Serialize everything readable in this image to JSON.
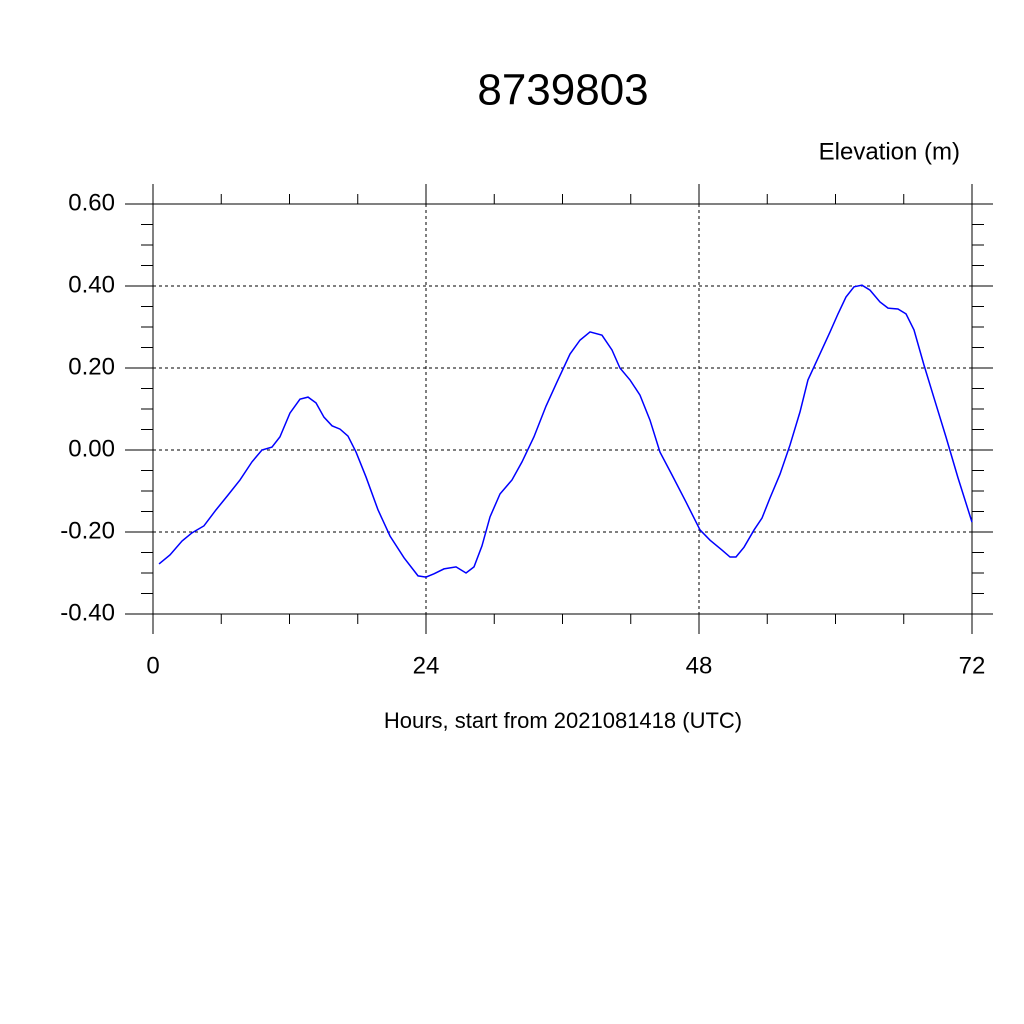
{
  "chart_data": {
    "type": "line",
    "title": "8739803",
    "ylabel": "Elevation (m)",
    "xlabel": "Hours, start from 2021081418 (UTC)",
    "color": "#0000ff",
    "grid": true,
    "xlim": [
      0,
      72
    ],
    "ylim": [
      -0.4,
      0.6
    ],
    "xticks": [
      0,
      24,
      48,
      72
    ],
    "yticks": [
      {
        "value": -0.4,
        "label": "-0.40"
      },
      {
        "value": -0.2,
        "label": "-0.20"
      },
      {
        "value": 0,
        "label": "0.00"
      },
      {
        "value": 0.2,
        "label": "0.20"
      },
      {
        "value": 0.4,
        "label": "0.40"
      },
      {
        "value": 0.6,
        "label": "0.60"
      }
    ],
    "x": [
      0.53,
      1.49,
      2.55,
      3.43,
      4.48,
      5.54,
      6.59,
      7.65,
      8.7,
      9.58,
      10.46,
      11.16,
      12.04,
      12.92,
      13.63,
      14.33,
      15.03,
      15.74,
      16.44,
      17.14,
      17.85,
      18.73,
      19.78,
      20.84,
      22.07,
      23.3,
      24.0,
      24.7,
      25.58,
      26.64,
      27.52,
      28.22,
      28.92,
      29.63,
      30.51,
      31.56,
      32.44,
      33.49,
      34.55,
      35.6,
      36.66,
      37.54,
      38.42,
      39.47,
      40.35,
      41.05,
      41.93,
      42.81,
      43.69,
      44.57,
      45.63,
      46.86,
      48.09,
      48.97,
      50.02,
      50.73,
      51.25,
      51.96,
      52.84,
      53.54,
      54.24,
      55.12,
      56.0,
      56.88,
      57.58,
      58.46,
      59.52,
      60.22,
      60.92,
      61.63,
      62.33,
      63.03,
      63.91,
      64.62,
      65.49,
      66.2,
      66.9,
      67.78,
      68.66,
      69.71,
      70.77,
      72.0
    ],
    "values": [
      -0.278,
      -0.256,
      -0.222,
      -0.202,
      -0.185,
      -0.146,
      -0.11,
      -0.073,
      -0.029,
      0.0,
      0.007,
      0.032,
      0.09,
      0.124,
      0.129,
      0.115,
      0.08,
      0.059,
      0.051,
      0.034,
      -0.005,
      -0.066,
      -0.146,
      -0.21,
      -0.263,
      -0.307,
      -0.31,
      -0.302,
      -0.29,
      -0.285,
      -0.3,
      -0.285,
      -0.234,
      -0.163,
      -0.107,
      -0.073,
      -0.029,
      0.032,
      0.107,
      0.171,
      0.234,
      0.268,
      0.288,
      0.28,
      0.244,
      0.2,
      0.171,
      0.134,
      0.073,
      -0.005,
      -0.061,
      -0.127,
      -0.195,
      -0.22,
      -0.244,
      -0.261,
      -0.261,
      -0.237,
      -0.195,
      -0.166,
      -0.117,
      -0.059,
      0.012,
      0.093,
      0.171,
      0.224,
      0.288,
      0.332,
      0.373,
      0.398,
      0.402,
      0.39,
      0.361,
      0.346,
      0.344,
      0.332,
      0.293,
      0.207,
      0.127,
      0.032,
      -0.068,
      -0.176
    ]
  }
}
